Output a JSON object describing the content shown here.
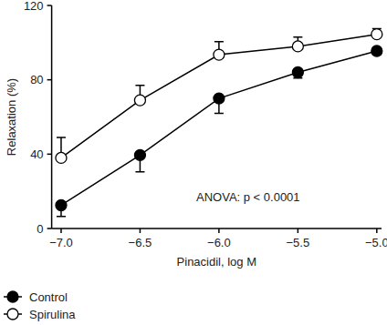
{
  "chart_data": {
    "type": "line",
    "x_label": "Pinacidil, log M",
    "y_label": "Relaxation (%)",
    "annotations": [
      "ANOVA: p < 0.0001"
    ],
    "x": [
      -7.0,
      -6.5,
      -6.0,
      -5.5,
      -5.0
    ],
    "xlim": [
      -7.06,
      -4.97
    ],
    "xticks": [
      {
        "value": -7.0,
        "label": "−7.0"
      },
      {
        "value": -6.5,
        "label": "−6.5"
      },
      {
        "value": -6.0,
        "label": "−6.0"
      },
      {
        "value": -5.5,
        "label": "−5.5"
      },
      {
        "value": -5.0,
        "label": "−5.0"
      }
    ],
    "ylim": [
      0,
      120
    ],
    "yticks": [
      0,
      40,
      80,
      120
    ],
    "grid": false,
    "legend": "bottom-left",
    "series": [
      {
        "name": "Control",
        "color": "#000000",
        "marker": "filled_circle",
        "line_style": "solid",
        "values": [
          12.5,
          39.5,
          70,
          84,
          95.5
        ],
        "errors": [
          6,
          9,
          8,
          3,
          2
        ]
      },
      {
        "name": "Spirulina",
        "color": "#000000",
        "marker": "open_circle",
        "line_style": "solid",
        "values": [
          38,
          69,
          93.5,
          98,
          104.5
        ],
        "errors": [
          11,
          8,
          7,
          5,
          3
        ]
      }
    ]
  }
}
